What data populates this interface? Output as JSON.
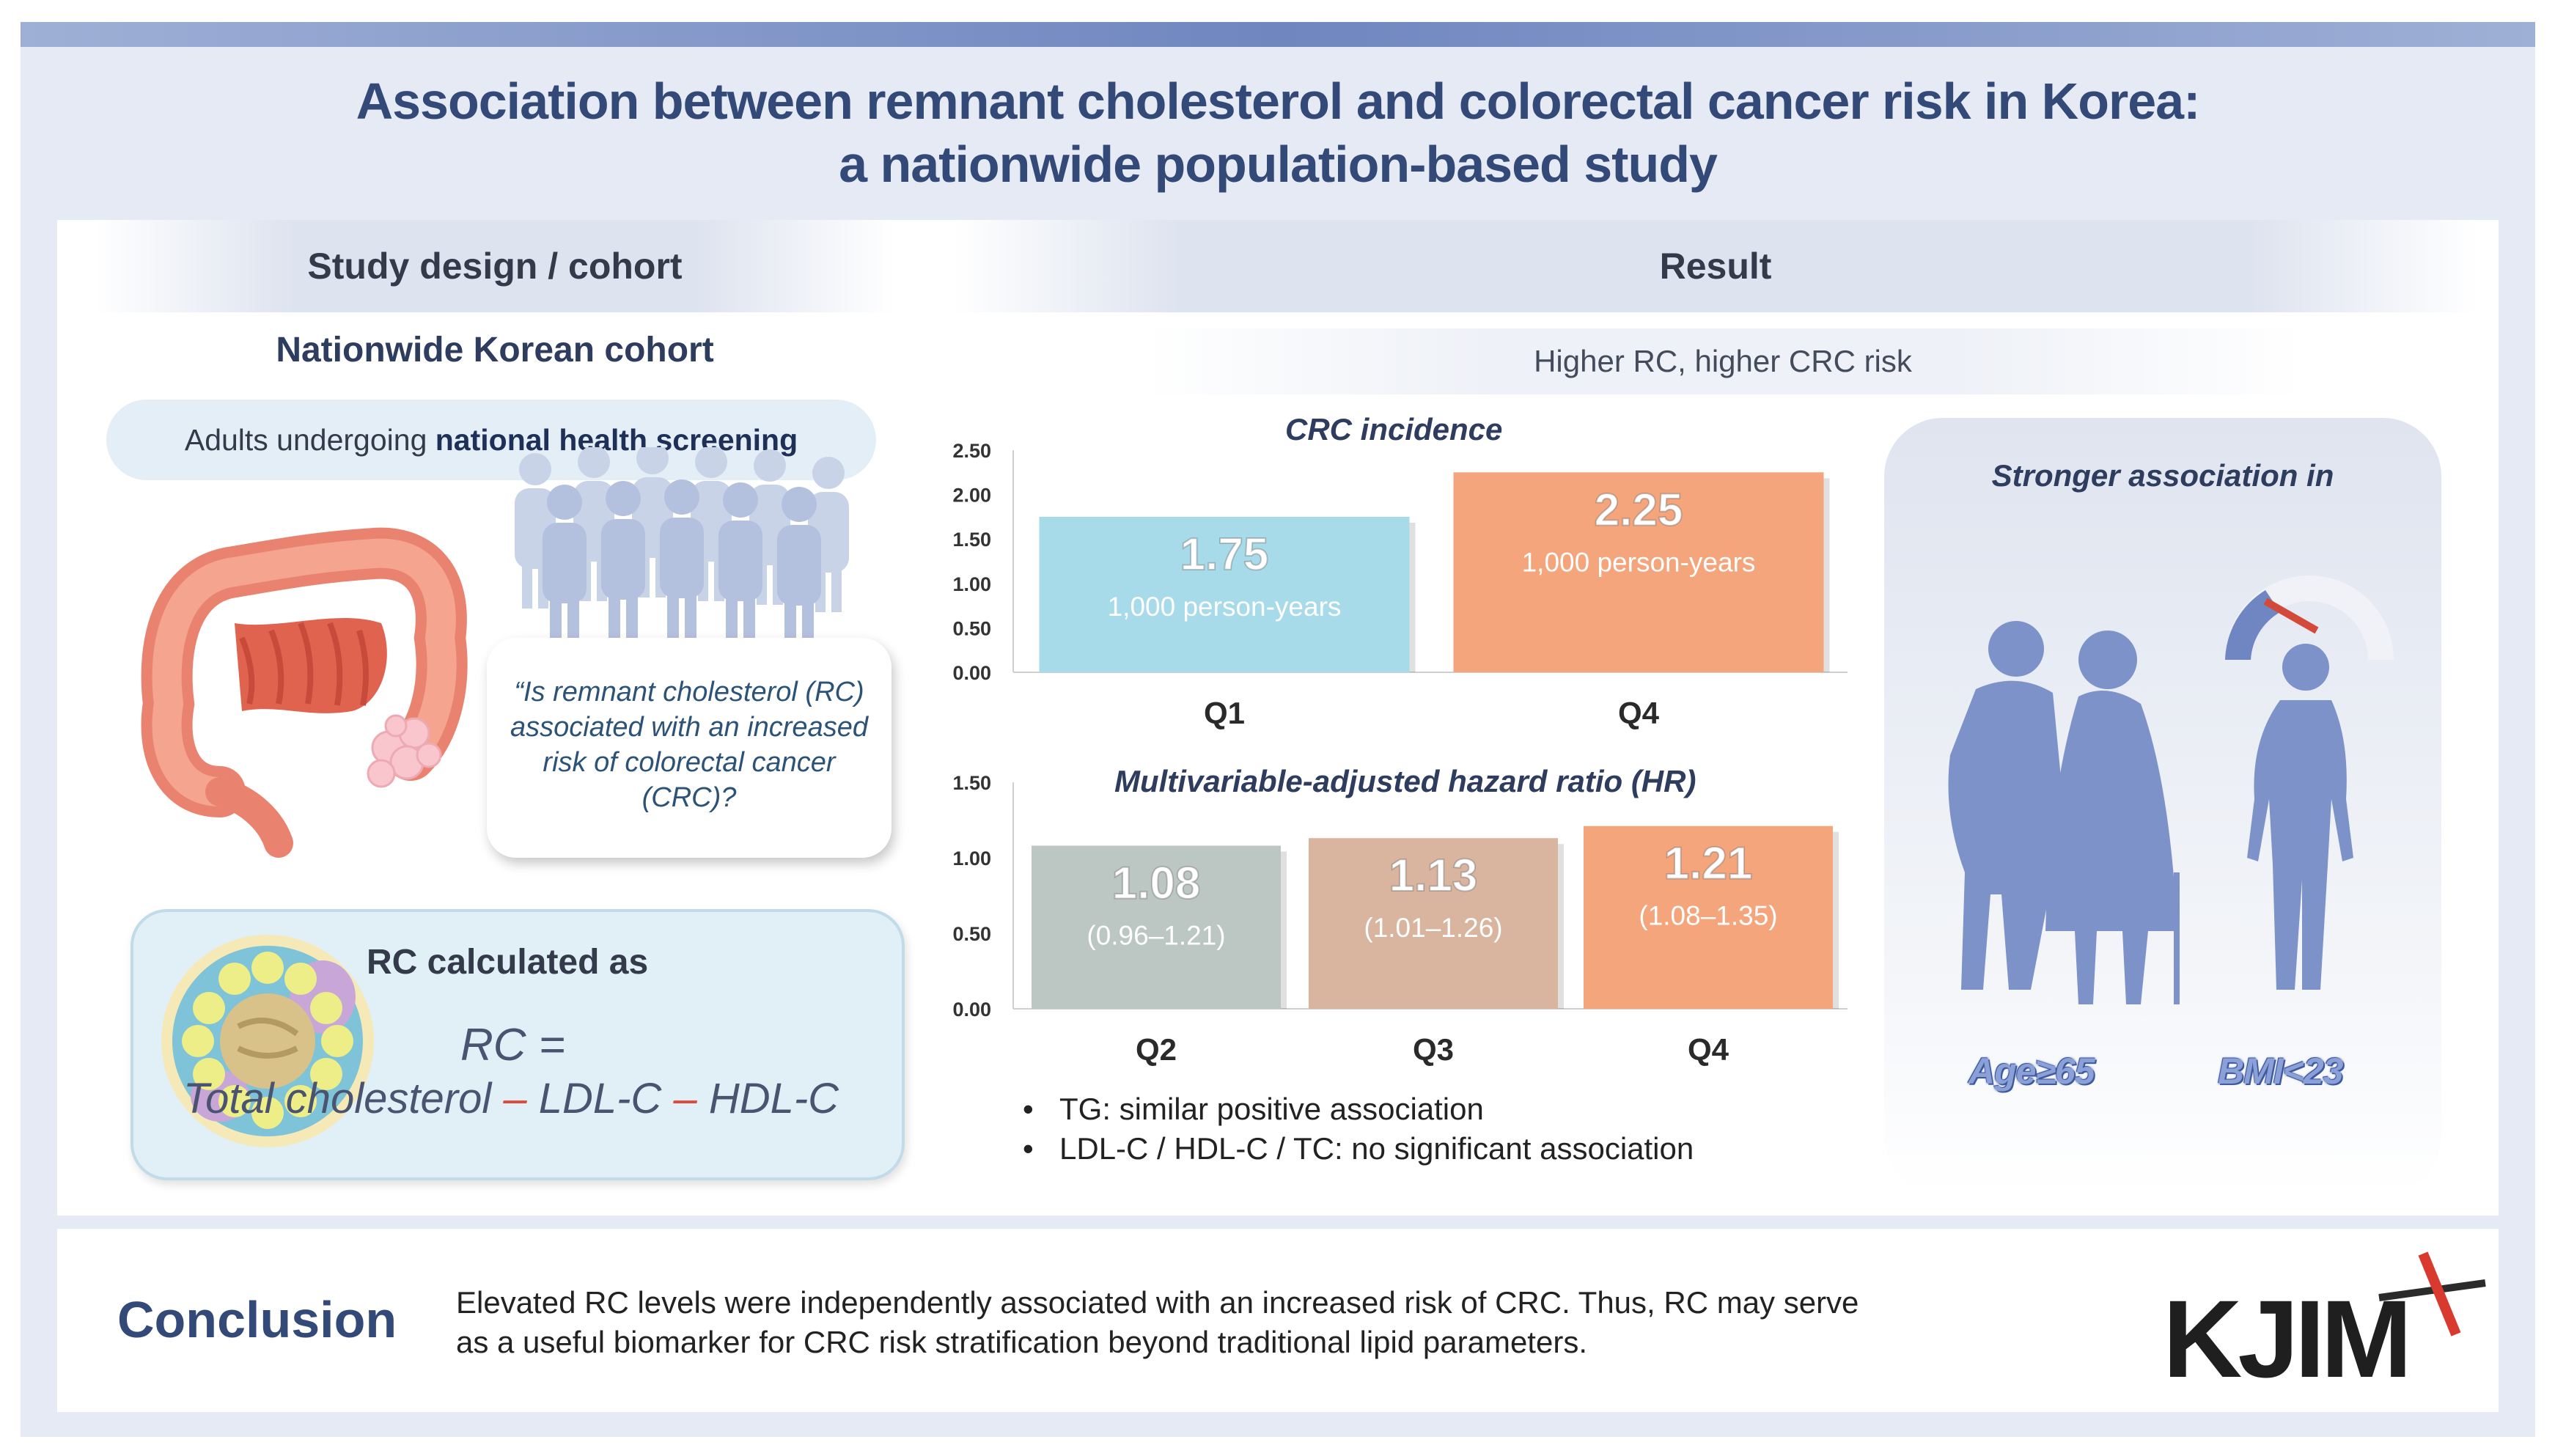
{
  "title": {
    "line1": "Association between remnant cholesterol and colorectal cancer risk in Korea:",
    "line2": "a nationwide population-based study"
  },
  "left": {
    "header": "Study design / cohort",
    "cohort": "Nationwide Korean cohort",
    "adults_prefix": "Adults undergoing ",
    "adults_bold": "national health screening",
    "question": "“Is remnant cholesterol (RC) associated with an increased risk of colorectal cancer (CRC)?",
    "rc_title": "RC calculated as",
    "rc_eq": "RC =",
    "rc_formula": {
      "a": "Total cholesterol",
      "op1": " – ",
      "b": "LDL-C",
      "op2": " – ",
      "c": "HDL-C"
    }
  },
  "right": {
    "header": "Result",
    "subtitle": "Higher RC, higher CRC risk",
    "stronger_title": "Stronger association in",
    "age_label": "Age≥65",
    "bmi_label": "BMI<23",
    "bullets": [
      "TG: similar positive association",
      "LDL-C / HDL-C / TC: no significant association"
    ]
  },
  "conclusion": {
    "title": "Conclusion",
    "text_line1": "Elevated RC levels were independently associated with an increased risk of CRC. Thus, RC may serve",
    "text_line2": "as a useful biomarker for CRC risk stratification beyond traditional lipid parameters."
  },
  "logo": "KJIM",
  "colors": {
    "blue_bar": "#a8dbe9",
    "orange_bar": "#f4a57c",
    "gray_bar": "#bcc6c2",
    "tan_bar": "#d9b49e",
    "figure": "#7d92c8",
    "accent_red": "#e04a3a"
  },
  "chart_data": [
    {
      "type": "bar",
      "title": "CRC incidence",
      "categories": [
        "Q1",
        "Q4"
      ],
      "values": [
        1.75,
        2.25
      ],
      "value_labels": [
        "1.75",
        "2.25"
      ],
      "sub_labels": [
        "1,000 person-years",
        "1,000 person-years"
      ],
      "yticks": [
        "0.00",
        "0.50",
        "1.00",
        "1.50",
        "2.00",
        "2.50"
      ],
      "ylim": [
        0,
        2.5
      ],
      "bar_colors": [
        "#a8dbe9",
        "#f4a57c"
      ]
    },
    {
      "type": "bar",
      "title": "Multivariable-adjusted hazard ratio (HR)",
      "categories": [
        "Q2",
        "Q3",
        "Q4"
      ],
      "values": [
        1.08,
        1.13,
        1.21
      ],
      "value_labels": [
        "1.08",
        "1.13",
        "1.21"
      ],
      "sub_labels": [
        "(0.96–1.21)",
        "(1.01–1.26)",
        "(1.08–1.35)"
      ],
      "yticks": [
        "0.00",
        "0.50",
        "1.00",
        "1.50"
      ],
      "ylim": [
        0,
        1.5
      ],
      "bar_colors": [
        "#bcc6c2",
        "#d9b49e",
        "#f4a57c"
      ]
    }
  ]
}
